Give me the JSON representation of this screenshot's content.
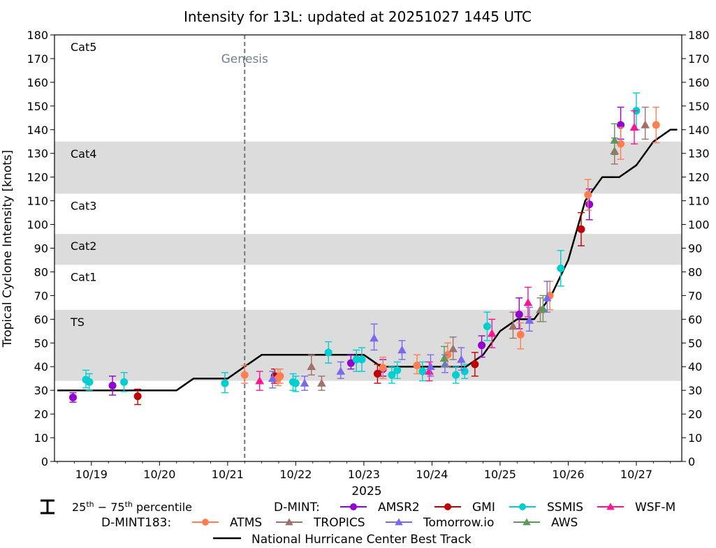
{
  "chart_data": {
    "type": "scatter",
    "title": "Intensity for 13L: updated at 20251027 1445 UTC",
    "ylabel": "Tropical Cyclone Intensity [knots]",
    "xlabel": "2025",
    "ylim": [
      0,
      180
    ],
    "xlim": [
      18.4583,
      27.6667
    ],
    "yticks": [
      0,
      10,
      20,
      30,
      40,
      50,
      60,
      70,
      80,
      90,
      100,
      110,
      120,
      130,
      140,
      150,
      160,
      170,
      180
    ],
    "xticks": [
      {
        "x": 19,
        "label": "10/19"
      },
      {
        "x": 20,
        "label": "10/20"
      },
      {
        "x": 21,
        "label": "10/21"
      },
      {
        "x": 22,
        "label": "10/22"
      },
      {
        "x": 23,
        "label": "10/23"
      },
      {
        "x": 24,
        "label": "10/24"
      },
      {
        "x": 25,
        "label": "10/25"
      },
      {
        "x": 26,
        "label": "10/26"
      },
      {
        "x": 27,
        "label": "10/27"
      }
    ],
    "bands": [
      {
        "label": "TS",
        "y0": 34,
        "y1": 64,
        "shaded": true
      },
      {
        "label": "Cat1",
        "y0": 64,
        "y1": 83,
        "shaded": false
      },
      {
        "label": "Cat2",
        "y0": 83,
        "y1": 96,
        "shaded": true
      },
      {
        "label": "Cat3",
        "y0": 96,
        "y1": 113,
        "shaded": false
      },
      {
        "label": "Cat4",
        "y0": 113,
        "y1": 135,
        "shaded": true
      },
      {
        "label": "Cat5",
        "y0": 135,
        "y1": 180,
        "shaded": false
      }
    ],
    "genesis": {
      "x": 21.25,
      "label": "Genesis"
    },
    "best_track": {
      "name": "National Hurricane Center Best Track",
      "color": "#000000",
      "points": [
        [
          18.5,
          30
        ],
        [
          20.25,
          30
        ],
        [
          20.5,
          35
        ],
        [
          21.0,
          35
        ],
        [
          21.25,
          40
        ],
        [
          21.5,
          45
        ],
        [
          23.0,
          45
        ],
        [
          23.25,
          40
        ],
        [
          24.25,
          40
        ],
        [
          24.5,
          40
        ],
        [
          24.75,
          45
        ],
        [
          25.0,
          55
        ],
        [
          25.25,
          60
        ],
        [
          25.5,
          60
        ],
        [
          25.75,
          70
        ],
        [
          26.0,
          85
        ],
        [
          26.25,
          110
        ],
        [
          26.5,
          120
        ],
        [
          26.75,
          120
        ],
        [
          27.0,
          125
        ],
        [
          27.25,
          135
        ],
        [
          27.5,
          140
        ],
        [
          27.6,
          140
        ]
      ]
    },
    "series": [
      {
        "name": "AMSR2",
        "group": "D-MINT",
        "marker": "circle",
        "color": "#9400D3",
        "points": [
          [
            18.73,
            27,
            25,
            29
          ],
          [
            19.31,
            32,
            28,
            36
          ],
          [
            22.81,
            41.5,
            39,
            45
          ],
          [
            23.28,
            39,
            36,
            43
          ],
          [
            24.73,
            49,
            44,
            53
          ],
          [
            25.28,
            62,
            56,
            69
          ],
          [
            26.31,
            108.5,
            102,
            115
          ],
          [
            26.77,
            142,
            136,
            149.5
          ]
        ]
      },
      {
        "name": "GMI",
        "group": "D-MINT",
        "marker": "circle",
        "color": "#C00000",
        "points": [
          [
            19.68,
            27.5,
            24,
            30.5
          ],
          [
            21.69,
            36,
            33,
            39
          ],
          [
            23.2,
            37,
            33,
            41
          ],
          [
            24.63,
            41,
            36,
            46
          ],
          [
            26.19,
            98,
            91,
            105
          ]
        ]
      },
      {
        "name": "SSMIS",
        "group": "D-MINT",
        "marker": "circle",
        "color": "#00CED1",
        "points": [
          [
            18.92,
            34.5,
            31,
            38.5
          ],
          [
            18.97,
            33.5,
            30,
            37
          ],
          [
            19.48,
            33.5,
            29.5,
            37.5
          ],
          [
            20.96,
            33,
            29,
            37.5
          ],
          [
            21.96,
            33.5,
            30,
            37
          ],
          [
            22.0,
            33,
            29.5,
            36
          ],
          [
            22.48,
            46,
            41.5,
            50.5
          ],
          [
            22.89,
            43,
            38,
            47
          ],
          [
            22.97,
            43,
            38,
            48
          ],
          [
            23.41,
            36.5,
            33,
            40
          ],
          [
            23.49,
            38.5,
            35,
            42
          ],
          [
            23.86,
            38,
            34,
            42
          ],
          [
            24.35,
            36.5,
            33,
            40
          ],
          [
            24.48,
            38,
            35,
            41
          ],
          [
            24.81,
            57,
            51,
            63
          ],
          [
            25.89,
            81.5,
            74,
            89
          ],
          [
            27.0,
            148,
            140,
            155.5
          ]
        ]
      },
      {
        "name": "WSF-M",
        "group": "D-MINT",
        "marker": "triangle",
        "color": "#FF1493",
        "points": [
          [
            21.47,
            34,
            30,
            38
          ],
          [
            23.96,
            38,
            34,
            42
          ],
          [
            24.88,
            54,
            48,
            60
          ],
          [
            25.41,
            67,
            61,
            73.5
          ],
          [
            26.97,
            141,
            134,
            148
          ]
        ]
      },
      {
        "name": "ATMS",
        "group": "D-MINT183",
        "marker": "circle",
        "color": "#FF7F50",
        "points": [
          [
            21.25,
            36.5,
            33,
            40.5
          ],
          [
            21.74,
            35,
            32,
            39
          ],
          [
            21.77,
            36,
            33,
            39
          ],
          [
            23.28,
            39.5,
            35,
            44
          ],
          [
            23.78,
            40.5,
            37,
            45
          ],
          [
            24.23,
            45,
            40,
            50
          ],
          [
            25.3,
            53.5,
            47.5,
            58.5
          ],
          [
            25.73,
            70,
            64,
            76
          ],
          [
            26.29,
            112.5,
            106,
            119
          ],
          [
            26.77,
            134,
            127.5,
            141
          ],
          [
            27.29,
            142,
            134.5,
            149.5
          ]
        ]
      },
      {
        "name": "TROPICS",
        "group": "D-MINT183",
        "marker": "triangle",
        "color": "#A0706A",
        "points": [
          [
            22.23,
            40,
            36.5,
            45
          ],
          [
            22.38,
            33,
            30,
            36
          ],
          [
            24.31,
            47.5,
            43,
            52.5
          ],
          [
            25.19,
            57,
            52,
            63
          ],
          [
            25.59,
            64,
            59,
            69
          ],
          [
            26.68,
            131,
            125.5,
            136.5
          ],
          [
            27.13,
            142,
            136,
            149.5
          ]
        ]
      },
      {
        "name": "Tomorrow.io",
        "group": "D-MINT183",
        "marker": "triangle",
        "color": "#7B68EE",
        "points": [
          [
            21.66,
            35,
            31,
            38
          ],
          [
            22.13,
            33,
            30,
            36
          ],
          [
            22.66,
            38,
            35,
            42
          ],
          [
            23.15,
            52,
            47,
            58
          ],
          [
            23.56,
            47,
            43,
            51
          ],
          [
            23.98,
            40,
            36,
            45
          ],
          [
            24.19,
            41,
            37.5,
            45
          ],
          [
            24.43,
            43,
            38.5,
            48
          ],
          [
            25.43,
            59.5,
            55,
            65
          ],
          [
            25.69,
            69,
            63,
            76
          ]
        ]
      },
      {
        "name": "AWS",
        "group": "D-MINT183",
        "marker": "triangle",
        "color": "#5C9A5C",
        "points": [
          [
            24.18,
            43.5,
            40,
            48.5
          ],
          [
            25.63,
            64.5,
            59,
            70
          ],
          [
            26.68,
            135.5,
            129.5,
            142.5
          ]
        ]
      }
    ]
  },
  "legend": {
    "percentile_label": "25th − 75th percentile",
    "dmint_label": "D-MINT:",
    "dmint183_label": "D-MINT183:",
    "best_track_label": "National Hurricane Center Best Track"
  }
}
